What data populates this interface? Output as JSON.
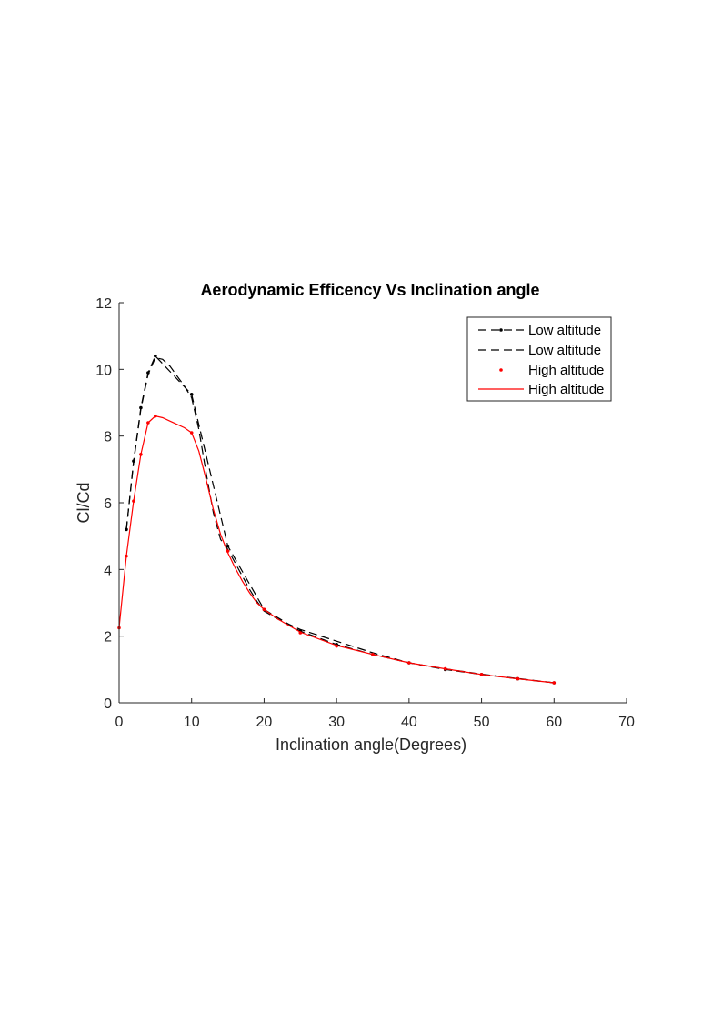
{
  "chart_data": {
    "type": "line",
    "title": "Aerodynamic Efficency Vs Inclination angle",
    "xlabel": "Inclination angle(Degrees)",
    "ylabel": "Cl/Cd",
    "xlim": [
      0,
      70
    ],
    "ylim": [
      0,
      12
    ],
    "xticks": [
      "0",
      "10",
      "20",
      "30",
      "40",
      "50",
      "60",
      "70"
    ],
    "yticks": [
      "0",
      "2",
      "4",
      "6",
      "8",
      "10",
      "12"
    ],
    "grid": false,
    "legend_position": "top-right",
    "series": [
      {
        "name": "Low altitude",
        "color": "#000000",
        "line": "dash",
        "marker": "dot",
        "x": [
          1,
          2,
          3,
          4,
          5,
          10,
          15,
          20,
          25,
          30,
          35,
          40,
          45,
          50,
          55,
          60
        ],
        "y": [
          5.2,
          7.25,
          8.85,
          9.9,
          10.4,
          9.25,
          4.7,
          2.8,
          2.15,
          1.75,
          1.45,
          1.2,
          1.0,
          0.85,
          0.72,
          0.6
        ]
      },
      {
        "name": "Low altitude",
        "color": "#000000",
        "line": "dash",
        "marker": "none",
        "x": [
          1,
          2,
          3,
          4,
          5,
          6,
          7,
          8,
          9,
          10,
          11,
          12,
          13,
          14,
          15,
          16,
          17,
          18,
          19,
          20,
          22,
          25,
          30,
          35,
          40,
          45,
          50,
          55,
          60
        ],
        "y": [
          5.2,
          7.2,
          8.8,
          9.85,
          10.35,
          10.3,
          10.1,
          9.8,
          9.5,
          9.15,
          8.2,
          6.9,
          5.7,
          4.9,
          4.6,
          4.2,
          3.8,
          3.4,
          3.05,
          2.75,
          2.5,
          2.2,
          1.85,
          1.5,
          1.2,
          1.02,
          0.86,
          0.73,
          0.6
        ]
      },
      {
        "name": "High altitude",
        "color": "#ff0000",
        "line": "none",
        "marker": "dot",
        "x": [
          0,
          1,
          2,
          3,
          4,
          5,
          10,
          15,
          20,
          25,
          30,
          35,
          40,
          45,
          50,
          55,
          60
        ],
        "y": [
          2.25,
          4.4,
          6.05,
          7.45,
          8.4,
          8.6,
          8.1,
          4.55,
          2.8,
          2.1,
          1.7,
          1.45,
          1.2,
          1.02,
          0.85,
          0.72,
          0.6
        ]
      },
      {
        "name": "High altitude",
        "color": "#ff0000",
        "line": "solid",
        "marker": "none",
        "x": [
          0,
          1,
          2,
          3,
          4,
          5,
          6,
          7,
          8,
          9,
          10,
          11,
          12,
          13,
          14,
          15,
          16,
          17,
          18,
          19,
          20,
          22,
          25,
          30,
          35,
          40,
          45,
          50,
          55,
          60
        ],
        "y": [
          2.25,
          4.4,
          6.05,
          7.45,
          8.4,
          8.6,
          8.55,
          8.45,
          8.35,
          8.25,
          8.1,
          7.55,
          6.7,
          5.8,
          5.05,
          4.5,
          4.05,
          3.65,
          3.3,
          3.0,
          2.8,
          2.5,
          2.12,
          1.72,
          1.45,
          1.2,
          1.02,
          0.85,
          0.72,
          0.6
        ]
      }
    ]
  }
}
